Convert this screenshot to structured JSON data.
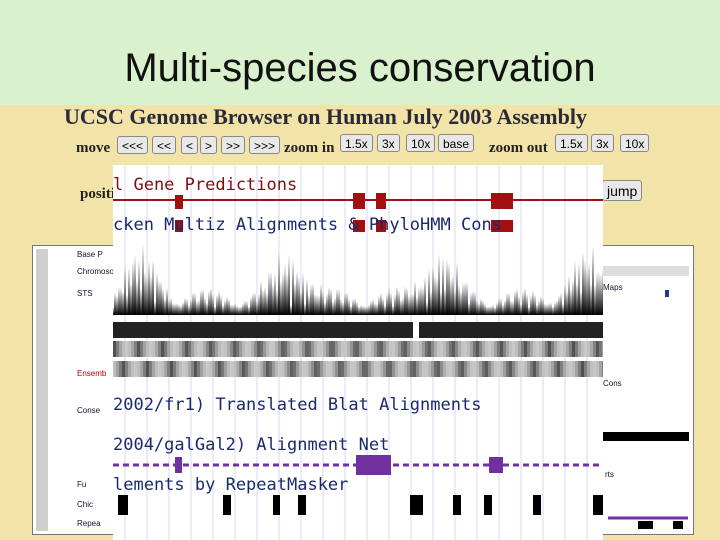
{
  "slide": {
    "title": "Multi-species conservation"
  },
  "browser": {
    "heading": "UCSC Genome Browser on Human July 2003 Assembly",
    "move_label": "move",
    "move_buttons": [
      "<<<",
      "<<",
      "<",
      ">",
      ">>",
      ">>>"
    ],
    "zoom_in_label": "zoom in",
    "zoom_in_buttons": [
      "1.5x",
      "3x",
      "10x",
      "base"
    ],
    "zoom_out_label": "zoom out",
    "zoom_out_buttons": [
      "1.5x",
      "3x",
      "10x"
    ],
    "position_label": "positi",
    "jump_button": "jump"
  },
  "background_track_labels": [
    "Base P",
    "Chromoso",
    "STS",
    "Ensemb",
    "Conse",
    "Fu",
    "Chic",
    "Repea"
  ],
  "background_right_labels": [
    "Maps",
    "Cons",
    "rts"
  ],
  "overlay_track_labels": [
    "l Gene Predictions",
    "cken Multiz Alignments & PhyloHMM Cons",
    "2002/fr1) Translated Blat Alignments",
    "2004/galGal2) Alignment Net",
    "lements by RepeatMasker"
  ]
}
